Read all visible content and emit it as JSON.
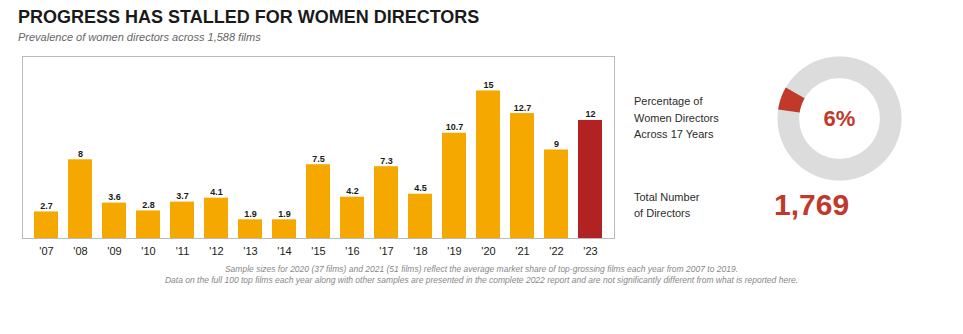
{
  "chart_data": [
    {
      "type": "bar",
      "title": "PROGRESS HAS STALLED FOR WOMEN DIRECTORS",
      "subtitle": "Prevalence of women directors across 1,588 films",
      "categories": [
        "'07",
        "'08",
        "'09",
        "'10",
        "'11",
        "'12",
        "'13",
        "'14",
        "'15",
        "'16",
        "'17",
        "'18",
        "'19",
        "'20",
        "'21",
        "'22",
        "'23"
      ],
      "values": [
        2.7,
        8.0,
        3.6,
        2.8,
        3.7,
        4.1,
        1.9,
        1.9,
        7.5,
        4.2,
        7.3,
        4.5,
        10.7,
        15.0,
        12.7,
        9.0,
        12.0
      ],
      "colors": [
        "#F5A800",
        "#F5A800",
        "#F5A800",
        "#F5A800",
        "#F5A800",
        "#F5A800",
        "#F5A800",
        "#F5A800",
        "#F5A800",
        "#F5A800",
        "#F5A800",
        "#F5A800",
        "#F5A800",
        "#F5A800",
        "#F5A800",
        "#F5A800",
        "#B22222"
      ],
      "ylim": [
        0,
        18.5
      ],
      "data_labels": true,
      "tick_labels": "x",
      "footnotes": [
        "Sample sizes for 2020 (37 films) and 2021 (51 films) reflect the average market share of  top-grossing films each year from 2007 to 2019.",
        "Data on the full 100 top films each year along with other samples are presented in the complete 2022 report and are not significantly different from what is reported here."
      ]
    },
    {
      "type": "donut",
      "title": "Percentage of\nWomen Directors\nAcross 17 Years",
      "values": [
        6
      ],
      "value_labels": [
        "6%"
      ],
      "color": "#C0392B",
      "annotations": [
        "Total Number\nof Directors",
        "1,769"
      ]
    }
  ]
}
